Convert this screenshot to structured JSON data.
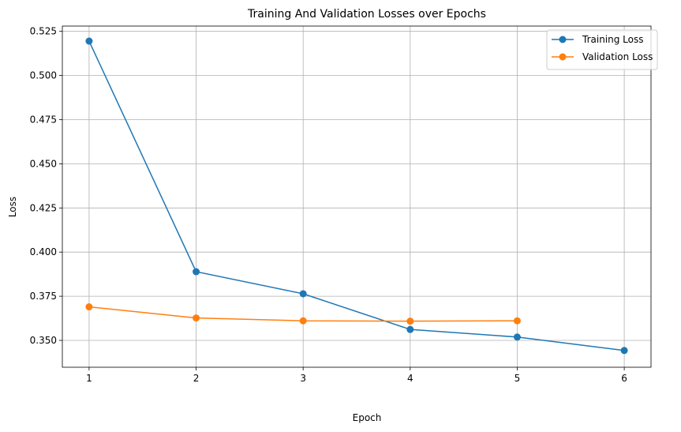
{
  "chart_data": {
    "type": "line",
    "title": "Training And Validation Losses over Epochs",
    "xlabel": "Epoch",
    "ylabel": "Loss",
    "xlim": [
      0.75,
      6.25
    ],
    "ylim": [
      0.3348,
      0.528
    ],
    "xticks": [
      "1",
      "2",
      "3",
      "4",
      "5",
      "6"
    ],
    "yticks": [
      "0.350",
      "0.375",
      "0.400",
      "0.425",
      "0.450",
      "0.475",
      "0.500",
      "0.525"
    ],
    "grid": true,
    "legend_position": "top-right",
    "series": [
      {
        "name": "Training Loss",
        "color": "#1f77b4",
        "x": [
          1,
          2,
          3,
          4,
          5,
          6
        ],
        "y": [
          0.5195,
          0.3889,
          0.3764,
          0.3562,
          0.3519,
          0.3443
        ]
      },
      {
        "name": "Validation Loss",
        "color": "#ff7f0e",
        "x": [
          1,
          2,
          3,
          4,
          5
        ],
        "y": [
          0.369,
          0.3627,
          0.3611,
          0.3609,
          0.3611
        ]
      }
    ]
  }
}
